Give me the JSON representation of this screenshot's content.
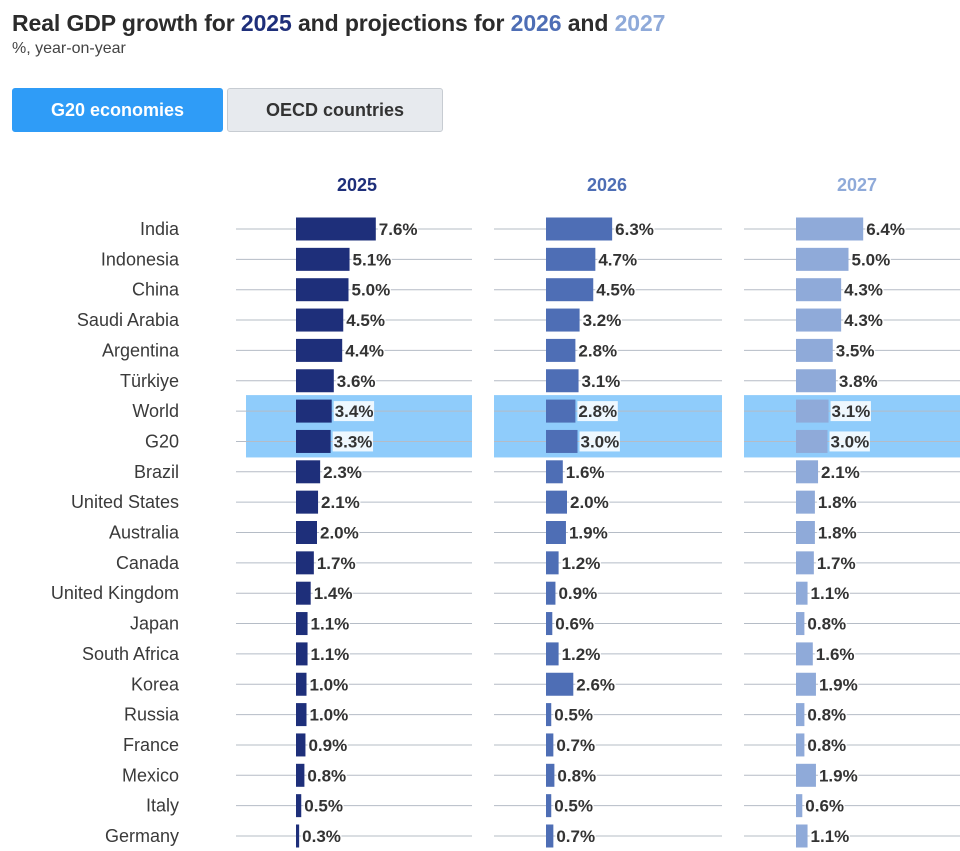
{
  "title": {
    "prefix": "Real GDP growth for ",
    "year1": "2025",
    "mid": " and projections for ",
    "year2": "2026",
    "and": " and ",
    "year3": "2027"
  },
  "subtitle": "%, year-on-year",
  "tabs": [
    {
      "label": "G20 economies",
      "active": true
    },
    {
      "label": "OECD countries",
      "active": false
    }
  ],
  "colors": {
    "series_2025": "#1e2f7a",
    "series_2026": "#4e6eb5",
    "series_2027": "#8faad9",
    "highlight": "#8fccfb",
    "tab_active": "#2f9cf7"
  },
  "chart_data": {
    "type": "bar",
    "orientation": "horizontal",
    "value_suffix": "%",
    "categories": [
      "India",
      "Indonesia",
      "China",
      "Saudi Arabia",
      "Argentina",
      "Türkiye",
      "World",
      "G20",
      "Brazil",
      "United States",
      "Australia",
      "Canada",
      "United Kingdom",
      "Japan",
      "South Africa",
      "Korea",
      "Russia",
      "France",
      "Mexico",
      "Italy",
      "Germany"
    ],
    "highlighted": [
      "World",
      "G20"
    ],
    "series": [
      {
        "name": "2025",
        "values": [
          7.6,
          5.1,
          5.0,
          4.5,
          4.4,
          3.6,
          3.4,
          3.3,
          2.3,
          2.1,
          2.0,
          1.7,
          1.4,
          1.1,
          1.1,
          1.0,
          1.0,
          0.9,
          0.8,
          0.5,
          0.3
        ]
      },
      {
        "name": "2026",
        "values": [
          6.3,
          4.7,
          4.5,
          3.2,
          2.8,
          3.1,
          2.8,
          3.0,
          1.6,
          2.0,
          1.9,
          1.2,
          0.9,
          0.6,
          1.2,
          2.6,
          0.5,
          0.7,
          0.8,
          0.5,
          0.7
        ]
      },
      {
        "name": "2027",
        "values": [
          6.4,
          5.0,
          4.3,
          4.3,
          3.5,
          3.8,
          3.1,
          3.0,
          2.1,
          1.8,
          1.8,
          1.7,
          1.1,
          0.8,
          1.6,
          1.9,
          0.8,
          0.8,
          1.9,
          0.6,
          1.1
        ]
      }
    ]
  }
}
